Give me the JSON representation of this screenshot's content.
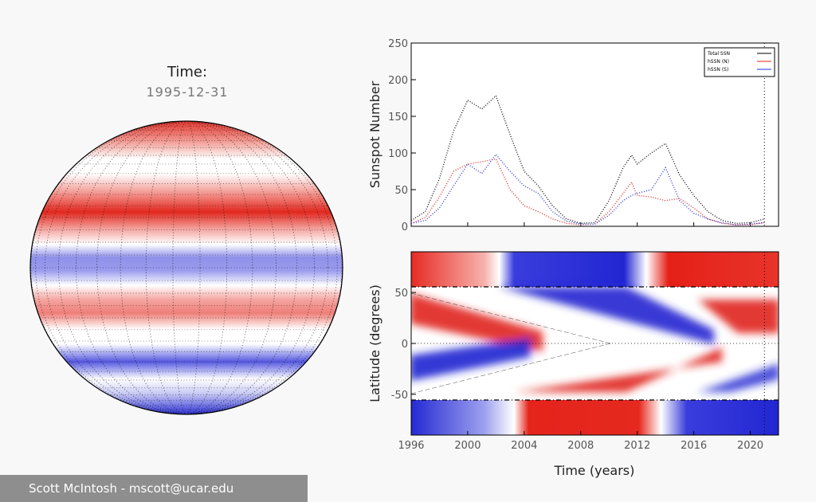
{
  "header": {
    "time_label": "Time:",
    "date": "1995-12-31"
  },
  "footer": {
    "credit": "Scott McIntosh - mscott@ucar.edu"
  },
  "colors": {
    "total": "#000000",
    "north": "#e0201a",
    "south": "#2030d8"
  },
  "chart_data": [
    {
      "type": "line",
      "ylabel": "Sunspot Number",
      "ylim": [
        0,
        250
      ],
      "xlim": [
        1996,
        2022
      ],
      "yticks": [
        "0",
        "50",
        "100",
        "150",
        "200",
        "250"
      ],
      "legend": {
        "placement": "top-right",
        "entries": [
          "Total SSN",
          "hSSN (N)",
          "hSSN (S)"
        ]
      },
      "vline_year": 2021,
      "series": [
        {
          "name": "Total SSN",
          "color": "#000000",
          "x": [
            1996,
            1997,
            1998,
            1999,
            2000,
            2001,
            2002,
            2003,
            2004,
            2005,
            2006,
            2007,
            2008,
            2009,
            2010,
            2011,
            2011.6,
            2012,
            2013,
            2014,
            2015,
            2016,
            2017,
            2018,
            2019,
            2020,
            2021
          ],
          "y": [
            8,
            20,
            65,
            130,
            172,
            160,
            178,
            125,
            75,
            55,
            28,
            10,
            4,
            5,
            35,
            80,
            97,
            85,
            100,
            113,
            70,
            42,
            20,
            8,
            4,
            5,
            10
          ]
        },
        {
          "name": "hSSN (N)",
          "color": "#e0201a",
          "x": [
            1996,
            1997,
            1998,
            1999,
            2000,
            2001,
            2002,
            2003,
            2004,
            2005,
            2006,
            2007,
            2008,
            2009,
            2010,
            2011,
            2011.6,
            2012,
            2013,
            2014,
            2015,
            2016,
            2017,
            2018,
            2019,
            2020,
            2021
          ],
          "y": [
            4,
            12,
            40,
            75,
            85,
            88,
            92,
            50,
            28,
            20,
            10,
            4,
            2,
            3,
            20,
            45,
            60,
            42,
            40,
            35,
            38,
            25,
            10,
            4,
            2,
            2,
            5
          ]
        },
        {
          "name": "hSSN (S)",
          "color": "#2030d8",
          "x": [
            1996,
            1997,
            1998,
            1999,
            2000,
            2001,
            2002,
            2003,
            2004,
            2005,
            2006,
            2007,
            2008,
            2009,
            2010,
            2011,
            2011.6,
            2012,
            2013,
            2014,
            2015,
            2016,
            2017,
            2018,
            2019,
            2020,
            2021
          ],
          "y": [
            4,
            8,
            25,
            55,
            85,
            72,
            98,
            75,
            55,
            45,
            20,
            7,
            3,
            3,
            15,
            35,
            42,
            45,
            50,
            80,
            35,
            18,
            10,
            5,
            2,
            3,
            5
          ]
        }
      ]
    },
    {
      "type": "heatmap",
      "xlabel": "Time (years)",
      "ylabel": "Latitude (degrees)",
      "xlim": [
        1996,
        2022
      ],
      "ylim": [
        -90,
        90
      ],
      "xticks": [
        "1996",
        "2000",
        "2004",
        "2008",
        "2012",
        "2016",
        "2020"
      ],
      "yticks": [
        "-50",
        "0",
        "50"
      ],
      "hlines_lat": [
        55,
        -55
      ]
    }
  ]
}
